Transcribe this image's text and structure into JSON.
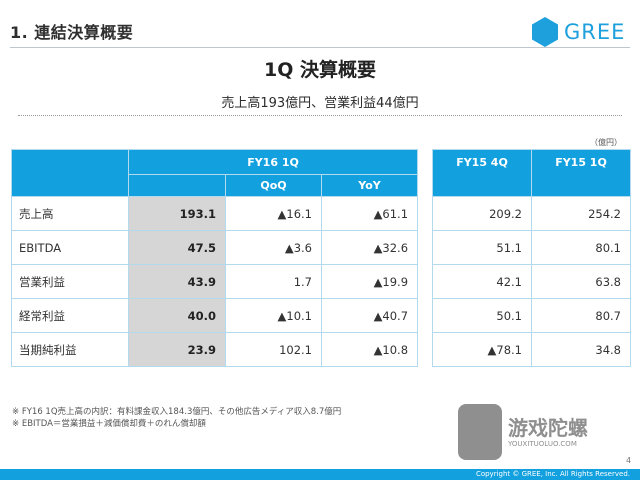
{
  "header": {
    "section_title": "1. 連結決算概要",
    "logo_text": "GREE"
  },
  "main_title": "1Q 決算概要",
  "subtitle": "売上高193億円、営業利益44億円",
  "unit_label": "（億円）",
  "table_main": {
    "period_header": "FY16 1Q",
    "sub_headers": [
      "QoQ",
      "YoY"
    ],
    "rows": [
      {
        "label": "売上高",
        "fy": "193.1",
        "qoq": "▲16.1",
        "yoy": "▲61.1"
      },
      {
        "label": "EBITDA",
        "fy": "47.5",
        "qoq": "▲3.6",
        "yoy": "▲32.6"
      },
      {
        "label": "営業利益",
        "fy": "43.9",
        "qoq": "1.7",
        "yoy": "▲19.9"
      },
      {
        "label": "経常利益",
        "fy": "40.0",
        "qoq": "▲10.1",
        "yoy": "▲40.7"
      },
      {
        "label": "当期純利益",
        "fy": "23.9",
        "qoq": "102.1",
        "yoy": "▲10.8"
      }
    ]
  },
  "table_compare": {
    "headers": [
      "FY15 4Q",
      "FY15 1Q"
    ],
    "rows": [
      [
        "209.2",
        "254.2"
      ],
      [
        "51.1",
        "80.1"
      ],
      [
        "42.1",
        "63.8"
      ],
      [
        "50.1",
        "80.7"
      ],
      [
        "▲78.1",
        "34.8"
      ]
    ]
  },
  "notes": [
    "※ FY16 1Q売上高の内訳：有料課金収入184.3億円、その他広告メディア収入8.7億円",
    "※ EBITDA＝営業損益＋減価償却費＋のれん償却額"
  ],
  "watermark": {
    "text": "游戏陀螺",
    "url": "YOUXITUOLUO.COM"
  },
  "page_number": "4",
  "footer_text": "Copyright © GREE, Inc. All Rights Reserved.",
  "colors": {
    "accent": "#13a0de",
    "fy_cell": "#d6d6d6"
  }
}
